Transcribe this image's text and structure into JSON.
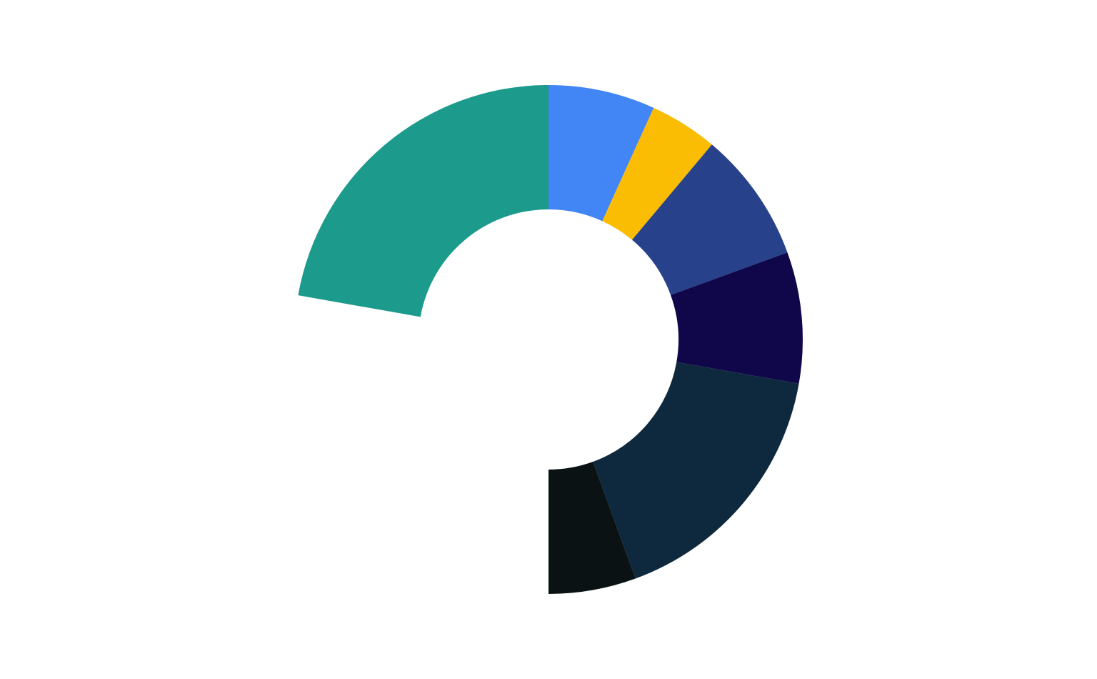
{
  "chart_data": {
    "type": "pie",
    "variant": "donut",
    "start_angle_deg": 0,
    "direction": "clockwise",
    "slices": [
      {
        "value": 22,
        "color": "#4285F4"
      },
      {
        "value": 14,
        "color": "#FBBC04"
      },
      {
        "value": 27,
        "color": "#27418B"
      },
      {
        "value": 27,
        "color": "#10074A"
      },
      {
        "value": 54,
        "color": "#0E293D"
      },
      {
        "value": 18,
        "color": "#0A1214"
      },
      {
        "value": 90,
        "color": "transparent"
      },
      {
        "value": 72,
        "color": "#1C9A8C"
      }
    ],
    "title": "",
    "legend": "none"
  }
}
